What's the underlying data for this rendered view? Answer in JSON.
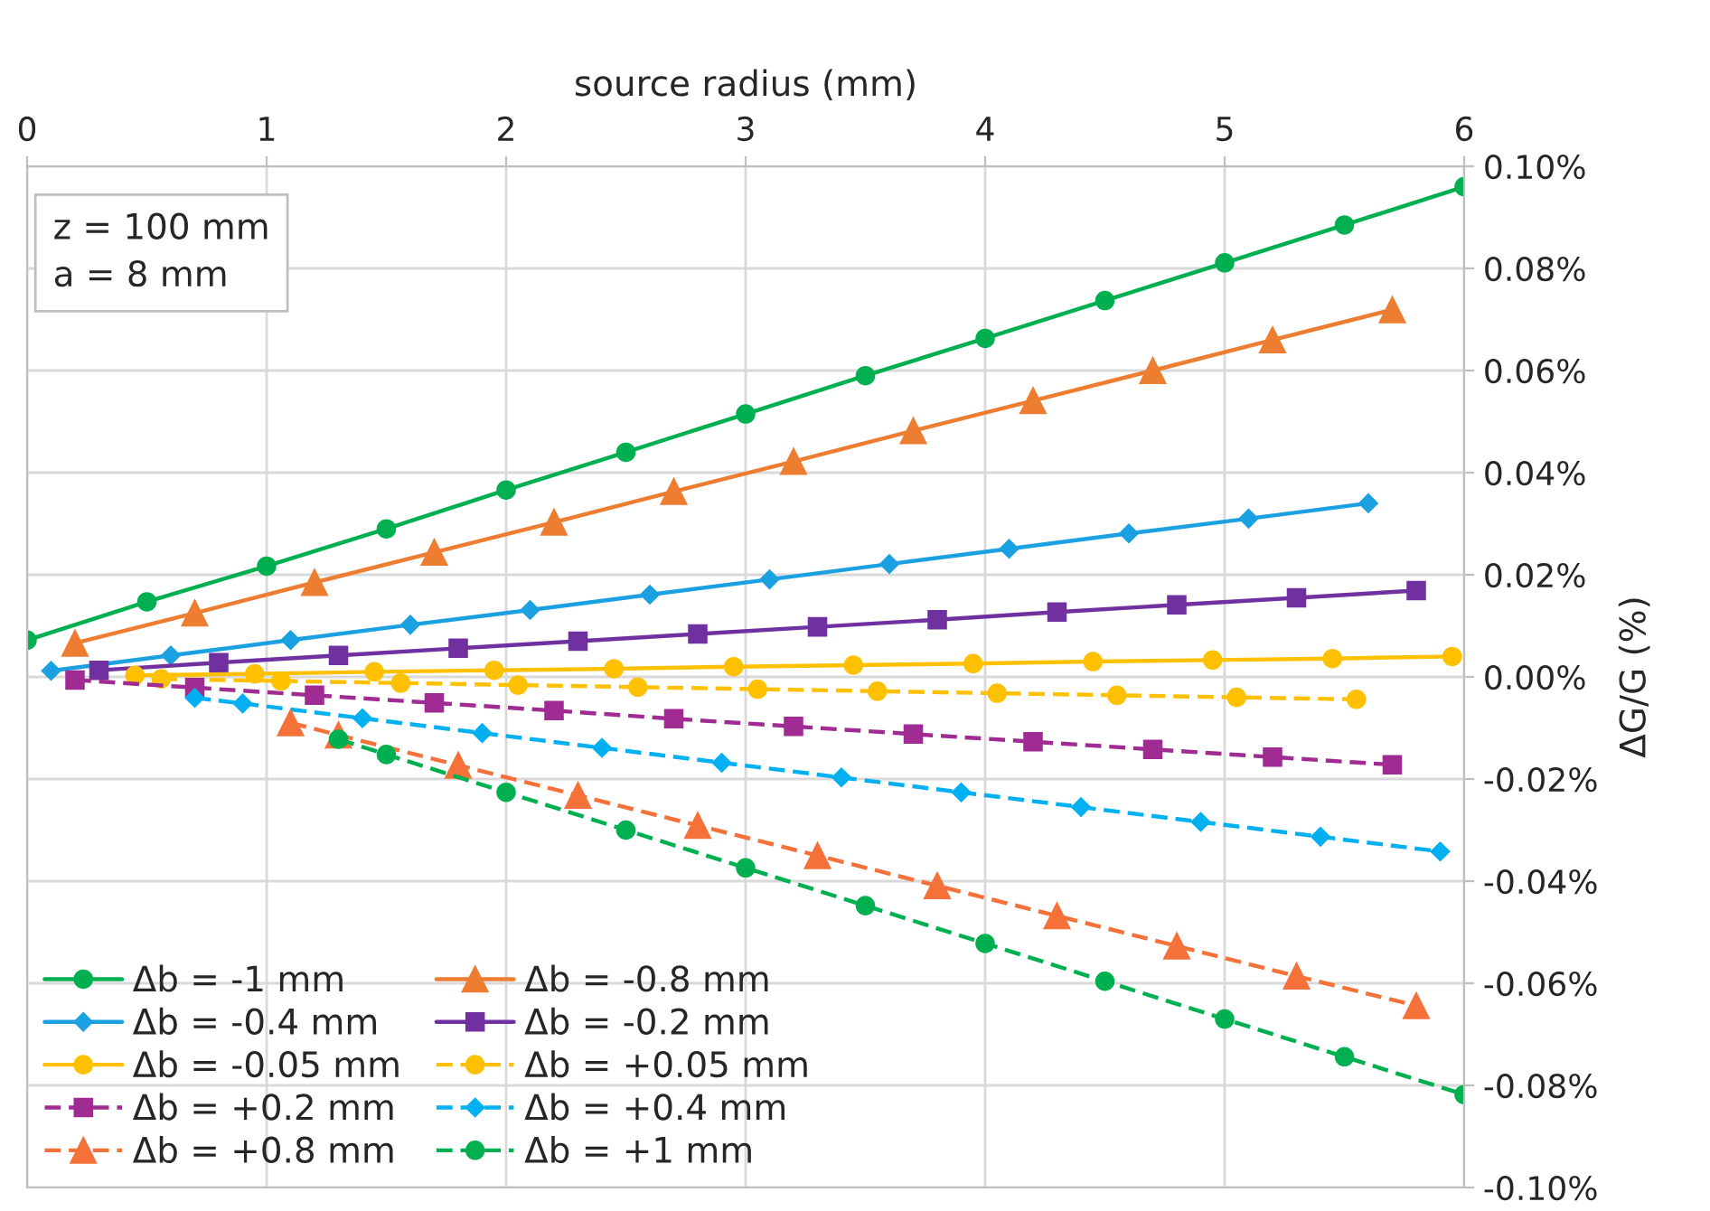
{
  "chart_data": {
    "type": "line",
    "xlabel": "source radius (mm)",
    "ylabel": "ΔG/G (%)",
    "xlim": [
      0,
      6
    ],
    "xticks": [
      0,
      1,
      2,
      3,
      4,
      5,
      6
    ],
    "ylim": [
      -0.1,
      0.1
    ],
    "yticks": [
      {
        "value": -0.1,
        "label": "-0.10%"
      },
      {
        "value": -0.08,
        "label": "-0.08%"
      },
      {
        "value": -0.06,
        "label": "-0.06%"
      },
      {
        "value": -0.04,
        "label": "-0.04%"
      },
      {
        "value": -0.02,
        "label": "-0.02%"
      },
      {
        "value": 0,
        "label": "0.00%"
      },
      {
        "value": 0.02,
        "label": "0.02%"
      },
      {
        "value": 0.04,
        "label": "0.04%"
      },
      {
        "value": 0.06,
        "label": "0.06%"
      },
      {
        "value": 0.08,
        "label": "0.08%"
      },
      {
        "value": 0.1,
        "label": "0.10%"
      }
    ],
    "grid": true,
    "legend": "bottom left",
    "annotations": [
      "z = 100 mm",
      "a = 8 mm"
    ],
    "series": [
      {
        "name": "Δb = -1 mm",
        "color": "#00b050",
        "marker": "circle",
        "line_style": "solid",
        "x": [
          0,
          0.5,
          1,
          1.5,
          2,
          2.5,
          3,
          3.5,
          4,
          4.5,
          5,
          5.5,
          6
        ],
        "values": [
          0.0072,
          0.0147,
          0.0217,
          0.029,
          0.0366,
          0.044,
          0.0515,
          0.059,
          0.0663,
          0.0737,
          0.0811,
          0.0885,
          0.096
        ]
      },
      {
        "name": "Δb = -0.8 mm",
        "color": "#ed7d31",
        "marker": "triangle",
        "line_style": "solid",
        "x": [
          0.2,
          0.7,
          1.2,
          1.7,
          2.2,
          2.7,
          3.2,
          3.7,
          4.2,
          4.7,
          5.2,
          5.7
        ],
        "values": [
          0.0066,
          0.0125,
          0.0185,
          0.0244,
          0.0303,
          0.0363,
          0.0422,
          0.0482,
          0.0541,
          0.06,
          0.066,
          0.0719
        ]
      },
      {
        "name": "Δb = -0.4 mm",
        "color": "#1ba1e2",
        "marker": "diamond",
        "line_style": "solid",
        "x": [
          0.1,
          0.6,
          1.1,
          1.6,
          2.1,
          2.6,
          3.1,
          3.6,
          4.1,
          4.6,
          5.1,
          5.6
        ],
        "values": [
          0.0012,
          0.0042,
          0.0072,
          0.0102,
          0.0131,
          0.0161,
          0.0191,
          0.0221,
          0.0251,
          0.0281,
          0.031,
          0.034
        ]
      },
      {
        "name": "Δb = -0.2 mm",
        "color": "#7030a0",
        "marker": "square",
        "line_style": "solid",
        "x": [
          0.3,
          0.8,
          1.3,
          1.8,
          2.3,
          2.8,
          3.3,
          3.8,
          4.3,
          4.8,
          5.3,
          5.8
        ],
        "values": [
          0.0013,
          0.0028,
          0.0042,
          0.0056,
          0.007,
          0.0084,
          0.0098,
          0.0112,
          0.0127,
          0.0141,
          0.0155,
          0.0169
        ]
      },
      {
        "name": "Δb = -0.05 mm",
        "color": "#ffc000",
        "marker": "circle",
        "line_style": "solid",
        "x": [
          0.45,
          0.95,
          1.45,
          1.95,
          2.45,
          2.95,
          3.45,
          3.95,
          4.45,
          4.95,
          5.45,
          5.95
        ],
        "values": [
          0.0003,
          0.0006,
          0.001,
          0.0013,
          0.0016,
          0.002,
          0.0023,
          0.0026,
          0.003,
          0.0033,
          0.0036,
          0.004
        ]
      },
      {
        "name": "Δb = +0.05 mm",
        "color": "#ffc000",
        "marker": "circle",
        "line_style": "dashed",
        "x": [
          0.56,
          1.06,
          1.56,
          2.05,
          2.55,
          3.05,
          3.55,
          4.05,
          4.55,
          5.05,
          5.55
        ],
        "values": [
          -0.0004,
          -0.0008,
          -0.0012,
          -0.0016,
          -0.002,
          -0.0024,
          -0.0028,
          -0.0032,
          -0.0036,
          -0.004,
          -0.0044
        ]
      },
      {
        "name": "Δb = +0.2 mm",
        "color": "#a02b93",
        "marker": "square",
        "line_style": "dashed",
        "x": [
          0.2,
          0.7,
          1.2,
          1.7,
          2.2,
          2.7,
          3.2,
          3.7,
          4.2,
          4.7,
          5.2,
          5.7
        ],
        "values": [
          -0.0006,
          -0.0021,
          -0.0036,
          -0.0051,
          -0.0066,
          -0.0082,
          -0.0097,
          -0.0112,
          -0.0127,
          -0.0142,
          -0.0157,
          -0.0172
        ]
      },
      {
        "name": "Δb = +0.4 mm",
        "color": "#00b0f0",
        "marker": "diamond",
        "line_style": "dashed",
        "x": [
          0.7,
          0.9,
          1.4,
          1.9,
          2.4,
          2.9,
          3.4,
          3.9,
          4.4,
          4.9,
          5.4,
          5.9
        ],
        "values": [
          -0.0041,
          -0.0052,
          -0.0081,
          -0.011,
          -0.0139,
          -0.0168,
          -0.0197,
          -0.0226,
          -0.0255,
          -0.0284,
          -0.0313,
          -0.0342
        ]
      },
      {
        "name": "Δb = +0.8 mm",
        "color": "#f4713a",
        "marker": "triangle",
        "line_style": "dashed",
        "x": [
          1.1,
          1.3,
          1.8,
          2.3,
          2.8,
          3.3,
          3.8,
          4.3,
          4.8,
          5.3,
          5.8
        ],
        "values": [
          -0.009,
          -0.0114,
          -0.0173,
          -0.0232,
          -0.0291,
          -0.035,
          -0.0409,
          -0.0468,
          -0.0527,
          -0.0586,
          -0.0644
        ]
      },
      {
        "name": "Δb = +1 mm",
        "color": "#00b050",
        "marker": "circle",
        "line_style": "dashed",
        "x": [
          1.3,
          1.5,
          2,
          2.5,
          3,
          3.5,
          4,
          4.5,
          5,
          5.5,
          6
        ],
        "values": [
          -0.0122,
          -0.0152,
          -0.0226,
          -0.03,
          -0.0374,
          -0.0448,
          -0.0522,
          -0.0596,
          -0.067,
          -0.0744,
          -0.0818
        ]
      }
    ]
  }
}
